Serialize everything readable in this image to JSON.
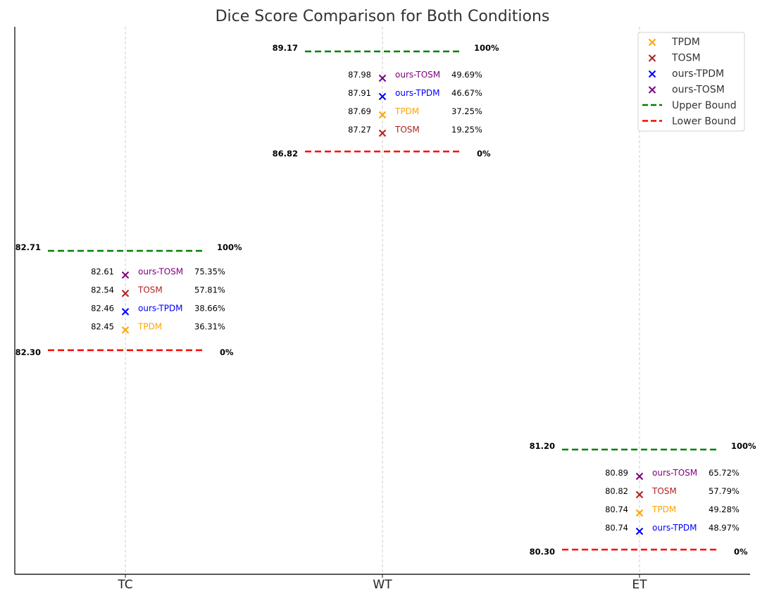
{
  "chart_data": {
    "type": "scatter",
    "title": "Dice Score Comparison for Both Conditions",
    "xlabel": "",
    "ylabel": "",
    "grid": "vertical dashed at each category",
    "legend_position": "top-right",
    "categories": [
      "TC",
      "WT",
      "ET"
    ],
    "colors": {
      "TPDM": "#ffa500",
      "TOSM": "#b22222",
      "ours-TPDM": "#0000ff",
      "ours-TOSM": "#800080",
      "Upper Bound": "#008000",
      "Lower Bound": "#ff0000"
    },
    "legend": [
      {
        "label": "TPDM",
        "kind": "marker",
        "color": "#ffa500"
      },
      {
        "label": "TOSM",
        "kind": "marker",
        "color": "#b22222"
      },
      {
        "label": "ours-TPDM",
        "kind": "marker",
        "color": "#0000ff"
      },
      {
        "label": "ours-TOSM",
        "kind": "marker",
        "color": "#800080"
      },
      {
        "label": "Upper Bound",
        "kind": "line",
        "color": "#008000"
      },
      {
        "label": "Lower Bound",
        "kind": "line",
        "color": "#ff0000"
      }
    ],
    "groups": [
      {
        "category": "TC",
        "upper": {
          "value": 82.71,
          "label": "82.71",
          "pct": "100%"
        },
        "lower": {
          "value": 82.3,
          "label": "82.30",
          "pct": "0%"
        },
        "points": [
          {
            "method": "ours-TOSM",
            "value": 82.61,
            "label": "82.61",
            "pct": "75.35%"
          },
          {
            "method": "TOSM",
            "value": 82.54,
            "label": "82.54",
            "pct": "57.81%"
          },
          {
            "method": "ours-TPDM",
            "value": 82.46,
            "label": "82.46",
            "pct": "38.66%"
          },
          {
            "method": "TPDM",
            "value": 82.45,
            "label": "82.45",
            "pct": "36.31%"
          }
        ]
      },
      {
        "category": "WT",
        "upper": {
          "value": 89.17,
          "label": "89.17",
          "pct": "100%"
        },
        "lower": {
          "value": 86.82,
          "label": "86.82",
          "pct": "0%"
        },
        "points": [
          {
            "method": "ours-TOSM",
            "value": 87.98,
            "label": "87.98",
            "pct": "49.69%"
          },
          {
            "method": "ours-TPDM",
            "value": 87.91,
            "label": "87.91",
            "pct": "46.67%"
          },
          {
            "method": "TPDM",
            "value": 87.69,
            "label": "87.69",
            "pct": "37.25%"
          },
          {
            "method": "TOSM",
            "value": 87.27,
            "label": "87.27",
            "pct": "19.25%"
          }
        ]
      },
      {
        "category": "ET",
        "upper": {
          "value": 81.2,
          "label": "81.20",
          "pct": "100%"
        },
        "lower": {
          "value": 80.3,
          "label": "80.30",
          "pct": "0%"
        },
        "points": [
          {
            "method": "ours-TOSM",
            "value": 80.89,
            "label": "80.89",
            "pct": "65.72%"
          },
          {
            "method": "TOSM",
            "value": 80.82,
            "label": "80.82",
            "pct": "57.79%"
          },
          {
            "method": "TPDM",
            "value": 80.74,
            "label": "80.74",
            "pct": "49.28%"
          },
          {
            "method": "ours-TPDM",
            "value": 80.74,
            "label": "80.74",
            "pct": "48.97%"
          }
        ]
      }
    ]
  }
}
